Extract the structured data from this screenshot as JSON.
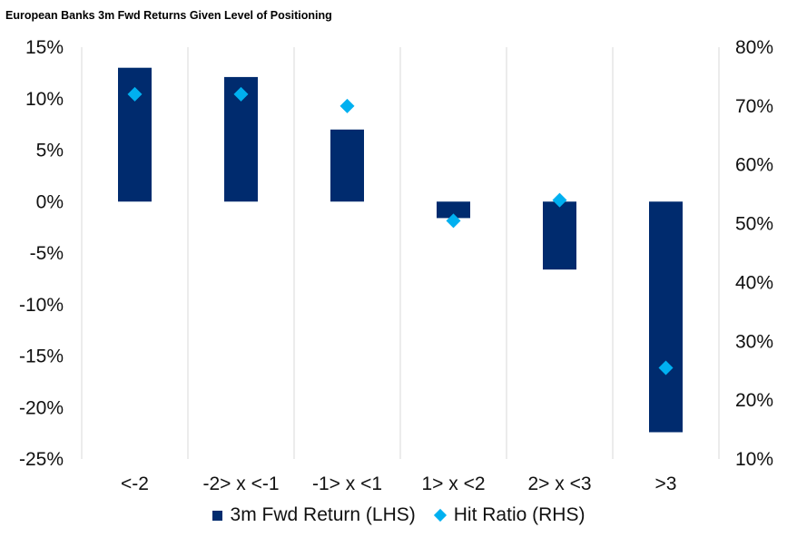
{
  "title": "European Banks 3m Fwd Returns Given Level of Positioning",
  "colors": {
    "bar": "#002b6e",
    "marker": "#00b0f0",
    "grid": "#d9d9d9",
    "axis_text": "#111111"
  },
  "chart_data": {
    "type": "bar",
    "title": "European Banks 3m Fwd Returns Given Level of Positioning",
    "categories": [
      "<-2",
      "-2> x <-1",
      "-1> x <1",
      "1> x <2",
      "2> x <3",
      ">3"
    ],
    "series": [
      {
        "name": "3m Fwd Return (LHS)",
        "type": "bar",
        "axis": "left",
        "values": [
          0.13,
          0.121,
          0.07,
          -0.016,
          -0.066,
          -0.224
        ]
      },
      {
        "name": "Hit Ratio (RHS)",
        "type": "scatter",
        "marker": "diamond",
        "axis": "right",
        "values": [
          0.72,
          0.72,
          0.7,
          0.505,
          0.54,
          0.255
        ]
      }
    ],
    "y_left": {
      "ylim": [
        -0.25,
        0.15
      ],
      "ticks": [
        "15%",
        "10%",
        "5%",
        "0%",
        "-5%",
        "-10%",
        "-15%",
        "-20%",
        "-25%"
      ]
    },
    "y_right": {
      "ylim": [
        0.1,
        0.8
      ],
      "ticks": [
        "80%",
        "70%",
        "60%",
        "50%",
        "40%",
        "30%",
        "20%",
        "10%"
      ]
    },
    "grid": "vertical",
    "legend_position": "bottom"
  }
}
